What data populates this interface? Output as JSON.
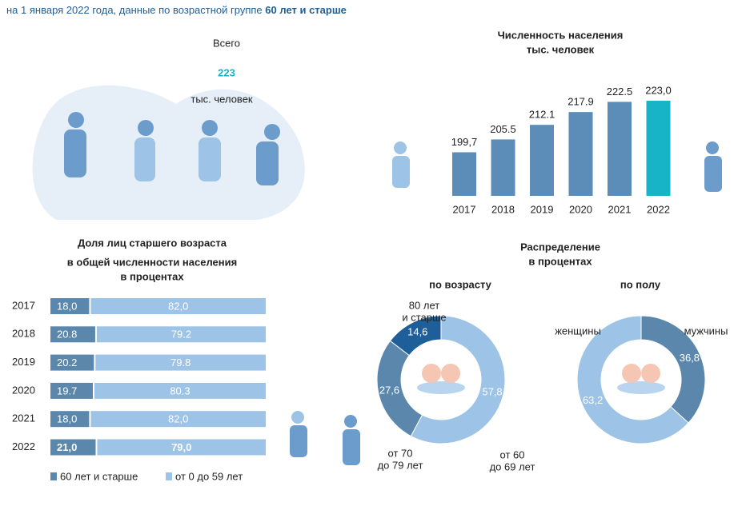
{
  "header": {
    "text": "на 1 января 2022 года, данные по возрастной группе ",
    "bold": "60 лет и старше"
  },
  "total": {
    "label": "Всего",
    "value": 223,
    "unit": "тыс. человек"
  },
  "distribution": {
    "title": "Распределение",
    "subtitle": "в процентах"
  },
  "chart_data": [
    {
      "type": "bar",
      "title": "Численность населения",
      "subtitle": "тыс. человек",
      "categories": [
        "2017",
        "2018",
        "2019",
        "2020",
        "2021",
        "2022"
      ],
      "values": [
        199.7,
        205.5,
        212.1,
        217.9,
        222.5,
        223.0
      ],
      "value_labels": [
        "199,7",
        "205.5",
        "212.1",
        "217.9",
        "222.5",
        "223,0"
      ],
      "colors": [
        "#5b8db8",
        "#5b8db8",
        "#5b8db8",
        "#5b8db8",
        "#5b8db8",
        "#16b4c6"
      ],
      "ylim": [
        180,
        225
      ]
    },
    {
      "type": "hbar-stacked",
      "title": [
        "Доля лиц старшего возраста",
        "в общей численности населения"
      ],
      "subtitle": "в процентах",
      "categories": [
        "2017",
        "2018",
        "2019",
        "2020",
        "2021",
        "2022"
      ],
      "series": [
        {
          "name": "60 лет и старше",
          "color": "#5b87ad",
          "values": [
            18.0,
            20.8,
            20.2,
            19.7,
            18.0,
            21.0
          ],
          "value_labels": [
            "18,0",
            "20.8",
            "20.2",
            "19.7",
            "18,0",
            "21,0"
          ]
        },
        {
          "name": "от 0 до 59 лет",
          "color": "#9dc3e6",
          "values": [
            82.0,
            79.2,
            79.8,
            80.3,
            82.0,
            79.0
          ],
          "value_labels": [
            "82,0",
            "79.2",
            "79.8",
            "80.3",
            "82,0",
            "79,0"
          ]
        }
      ],
      "xlim": [
        0,
        100
      ],
      "legend": "bottom"
    },
    {
      "type": "donut",
      "title": "по возрасту",
      "categories": [
        [
          "от 60",
          "до 69 лет"
        ],
        [
          "от 70",
          "до 79 лет"
        ],
        [
          "80 лет",
          "и старше"
        ]
      ],
      "values": [
        57.8,
        27.6,
        14.6
      ],
      "value_labels": [
        "57,8",
        "27,6",
        "14,6"
      ],
      "colors": [
        "#9dc3e6",
        "#5b87ad",
        "#1f5f99"
      ]
    },
    {
      "type": "donut",
      "title": "по полу",
      "categories": [
        [
          "мужчины"
        ],
        [
          "женщины"
        ]
      ],
      "values": [
        36.8,
        63.2
      ],
      "value_labels": [
        "36,8",
        "63,2"
      ],
      "colors": [
        "#5b87ad",
        "#9dc3e6"
      ]
    }
  ]
}
